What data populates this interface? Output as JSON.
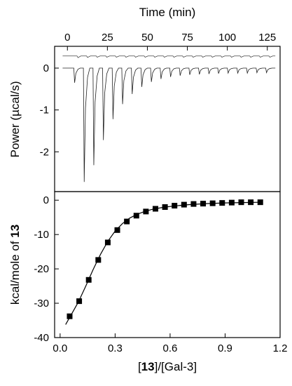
{
  "chart_data": [
    {
      "panel": "top",
      "type": "line",
      "title": "",
      "xlabel": "Time (min)",
      "ylabel": "Power (µcal/s)",
      "xlim": [
        -8,
        133
      ],
      "ylim": [
        -2.95,
        0.52
      ],
      "xticks": [
        0,
        25,
        50,
        75,
        100,
        125
      ],
      "yticks": [
        0,
        -1,
        -2
      ],
      "ytick_labels": [
        "0",
        "-1",
        "-2"
      ],
      "grid": false,
      "series": [
        {
          "role": "reference trace",
          "baseline": 0.29,
          "injection_times": [
            6,
            12,
            18,
            24,
            30,
            36,
            42,
            48,
            54,
            60,
            66,
            72,
            78,
            84,
            90,
            96,
            102,
            108,
            114,
            120,
            126
          ],
          "injection_depths": [
            -0.04,
            -0.035,
            -0.03,
            -0.03,
            -0.03,
            -0.03,
            -0.03,
            -0.03,
            -0.03,
            -0.03,
            -0.03,
            -0.03,
            -0.03,
            -0.03,
            -0.03,
            -0.03,
            -0.03,
            -0.03,
            -0.03,
            -0.03,
            -0.03
          ]
        },
        {
          "role": "sample trace",
          "baseline": 0,
          "injection_times": [
            4,
            10,
            16,
            22,
            28,
            34,
            40,
            46,
            52,
            58,
            64,
            70,
            76,
            82,
            88,
            94,
            100,
            106,
            112,
            118,
            124
          ],
          "injection_peaks": [
            -0.35,
            -2.72,
            -2.32,
            -1.72,
            -1.22,
            -0.86,
            -0.62,
            -0.45,
            -0.33,
            -0.26,
            -0.21,
            -0.18,
            -0.16,
            -0.15,
            -0.14,
            -0.13,
            -0.12,
            -0.12,
            -0.12,
            -0.11,
            -0.11
          ]
        }
      ]
    },
    {
      "panel": "bottom",
      "type": "scatter",
      "title": "",
      "xlabel_prefix": "[",
      "xlabel_bold": "13",
      "xlabel_suffix": "]/[Gal-3]",
      "ylabel_prefix": "kcal/mole of ",
      "ylabel_bold": "13",
      "xlim": [
        -0.03,
        1.2
      ],
      "ylim": [
        -40,
        2.5
      ],
      "xticks": [
        0.0,
        0.3,
        0.6,
        0.9,
        1.2
      ],
      "xtick_labels": [
        "0.0",
        "0.3",
        "0.6",
        "0.9",
        "1.2"
      ],
      "yticks": [
        0,
        -10,
        -20,
        -30,
        -40
      ],
      "ytick_labels": [
        "0",
        "-10",
        "-20",
        "-30",
        "-40"
      ],
      "grid": false,
      "series": [
        {
          "role": "data points",
          "marker": "filled-square",
          "x": [
            0.052,
            0.104,
            0.156,
            0.208,
            0.26,
            0.312,
            0.364,
            0.416,
            0.468,
            0.52,
            0.572,
            0.624,
            0.676,
            0.728,
            0.78,
            0.832,
            0.884,
            0.936,
            0.988,
            1.04,
            1.092
          ],
          "y": [
            -33.8,
            -29.4,
            -23.2,
            -17.4,
            -12.3,
            -8.7,
            -6.2,
            -4.5,
            -3.3,
            -2.5,
            -2.0,
            -1.6,
            -1.3,
            -1.1,
            -1.0,
            -0.9,
            -0.8,
            -0.7,
            -0.6,
            -0.6,
            -0.6
          ]
        },
        {
          "role": "fit curve",
          "x": [
            0.03,
            0.06,
            0.1,
            0.14,
            0.18,
            0.22,
            0.26,
            0.3,
            0.34,
            0.38,
            0.42,
            0.46,
            0.5,
            0.56,
            0.62,
            0.7,
            0.8,
            0.9,
            1.0,
            1.09
          ],
          "y": [
            -36.2,
            -33.4,
            -29.6,
            -25.0,
            -20.2,
            -15.8,
            -12.0,
            -9.0,
            -6.8,
            -5.2,
            -4.1,
            -3.3,
            -2.7,
            -2.1,
            -1.7,
            -1.3,
            -1.0,
            -0.8,
            -0.7,
            -0.6
          ]
        }
      ]
    }
  ]
}
